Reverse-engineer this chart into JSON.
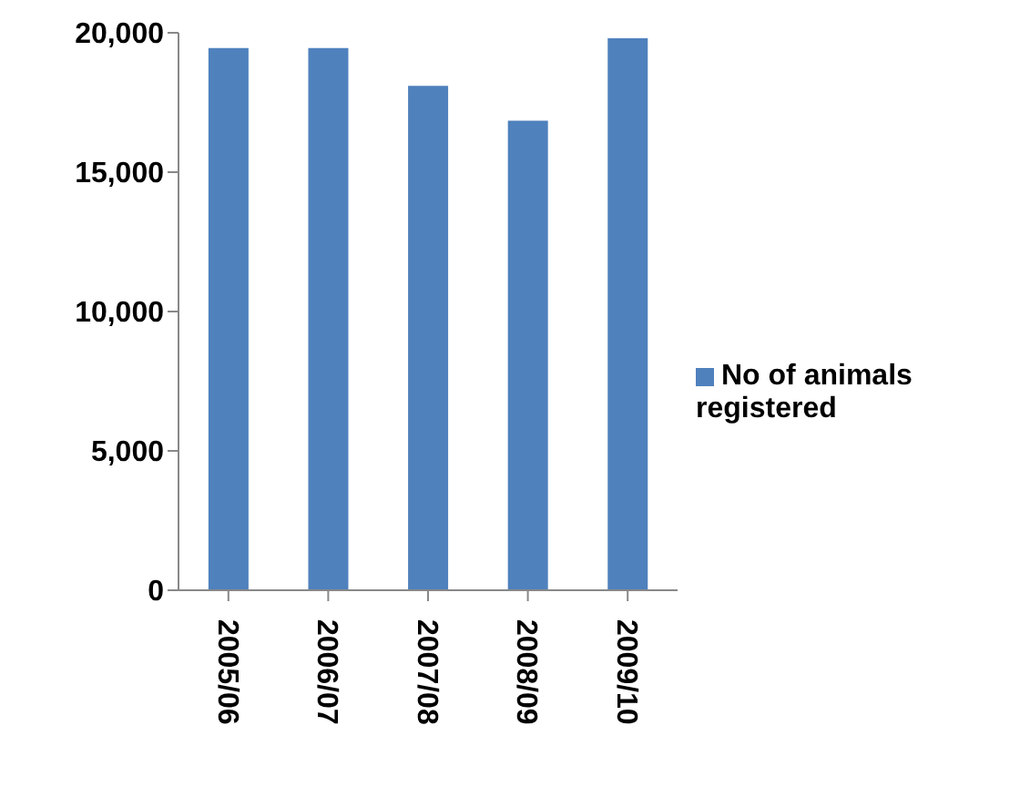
{
  "chart_data": {
    "type": "bar",
    "categories": [
      "2005/06",
      "2006/07",
      "2007/08",
      "2008/09",
      "2009/10"
    ],
    "series": [
      {
        "name": "No of animals registered",
        "color": "#4f81bd",
        "values": [
          19450,
          19450,
          18100,
          16850,
          19800
        ]
      }
    ],
    "ylim": [
      0,
      20000
    ],
    "yticks": [
      0,
      {
        "value": 5000,
        "label": "5,000"
      },
      {
        "value": 10000,
        "label": "10,000"
      },
      {
        "value": 15000,
        "label": "15,000"
      },
      {
        "value": 20000,
        "label": "20,000"
      }
    ],
    "grid": false,
    "legend": "right"
  }
}
